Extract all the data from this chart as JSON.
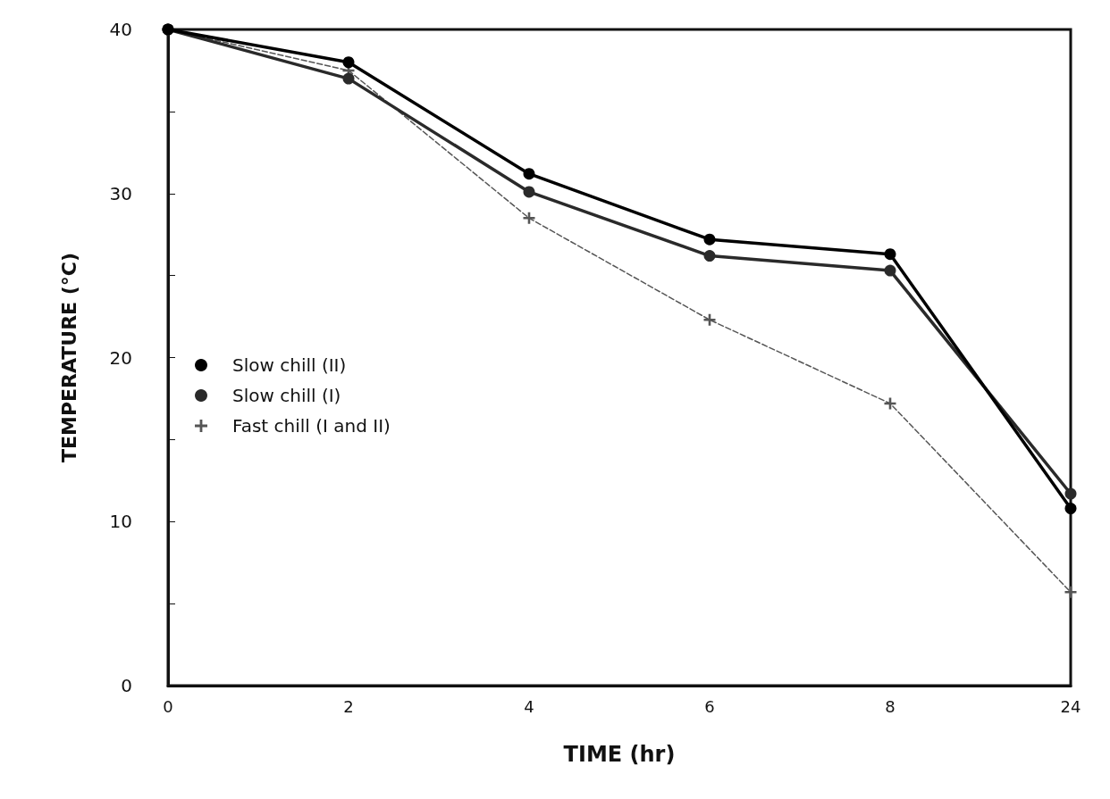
{
  "chart_data": {
    "type": "line",
    "xlabel": "TIME (hr)",
    "ylabel": "TEMPERATURE (°C)",
    "categories": [
      "0",
      "2",
      "4",
      "6",
      "8",
      "24"
    ],
    "series": [
      {
        "name": "Slow chill (II)",
        "color": "#000000",
        "marker": "circle",
        "line_style": "solid",
        "values": [
          40,
          38,
          31.2,
          27.2,
          26.3,
          10.8
        ]
      },
      {
        "name": "Slow chill (I)",
        "color": "#2a2a2a",
        "marker": "circle",
        "line_style": "solid",
        "values": [
          40,
          37,
          30.1,
          26.2,
          25.3,
          11.7
        ]
      },
      {
        "name": "Fast chill (I and II)",
        "color": "#555555",
        "marker": "cross",
        "line_style": "dashed",
        "values": [
          40,
          37.5,
          28.5,
          22.3,
          17.2,
          5.7
        ]
      }
    ],
    "ylim": [
      0,
      40
    ],
    "yticks": [
      0,
      {
        "value": 5,
        "label": null
      },
      10,
      {
        "value": 15,
        "label": null
      },
      20,
      {
        "value": 25,
        "label": null
      },
      30,
      {
        "value": 35,
        "label": null
      },
      40
    ],
    "grid": false,
    "legend": "left"
  }
}
